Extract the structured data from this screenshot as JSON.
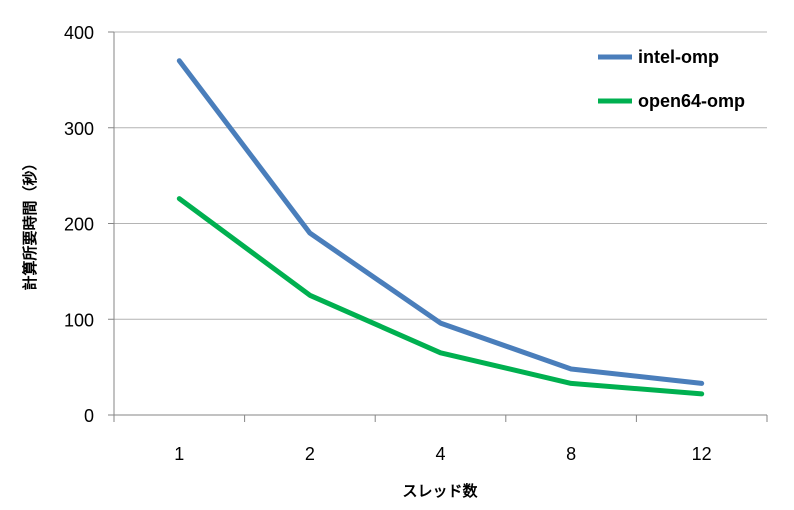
{
  "chart_data": {
    "type": "line",
    "categories": [
      "1",
      "2",
      "4",
      "8",
      "12"
    ],
    "series": [
      {
        "name": "intel-omp",
        "values": [
          370,
          190,
          96,
          48,
          33
        ],
        "color": "#4a7ebb"
      },
      {
        "name": "open64-omp",
        "values": [
          226,
          125,
          65,
          33,
          22
        ],
        "color": "#00b050"
      }
    ],
    "xlabel": "スレッド数",
    "ylabel": "計算所要時間（秒）",
    "ylim": [
      0,
      400
    ],
    "yticks": [
      0,
      100,
      200,
      300,
      400
    ],
    "grid": true,
    "legend_position": "top-right"
  }
}
